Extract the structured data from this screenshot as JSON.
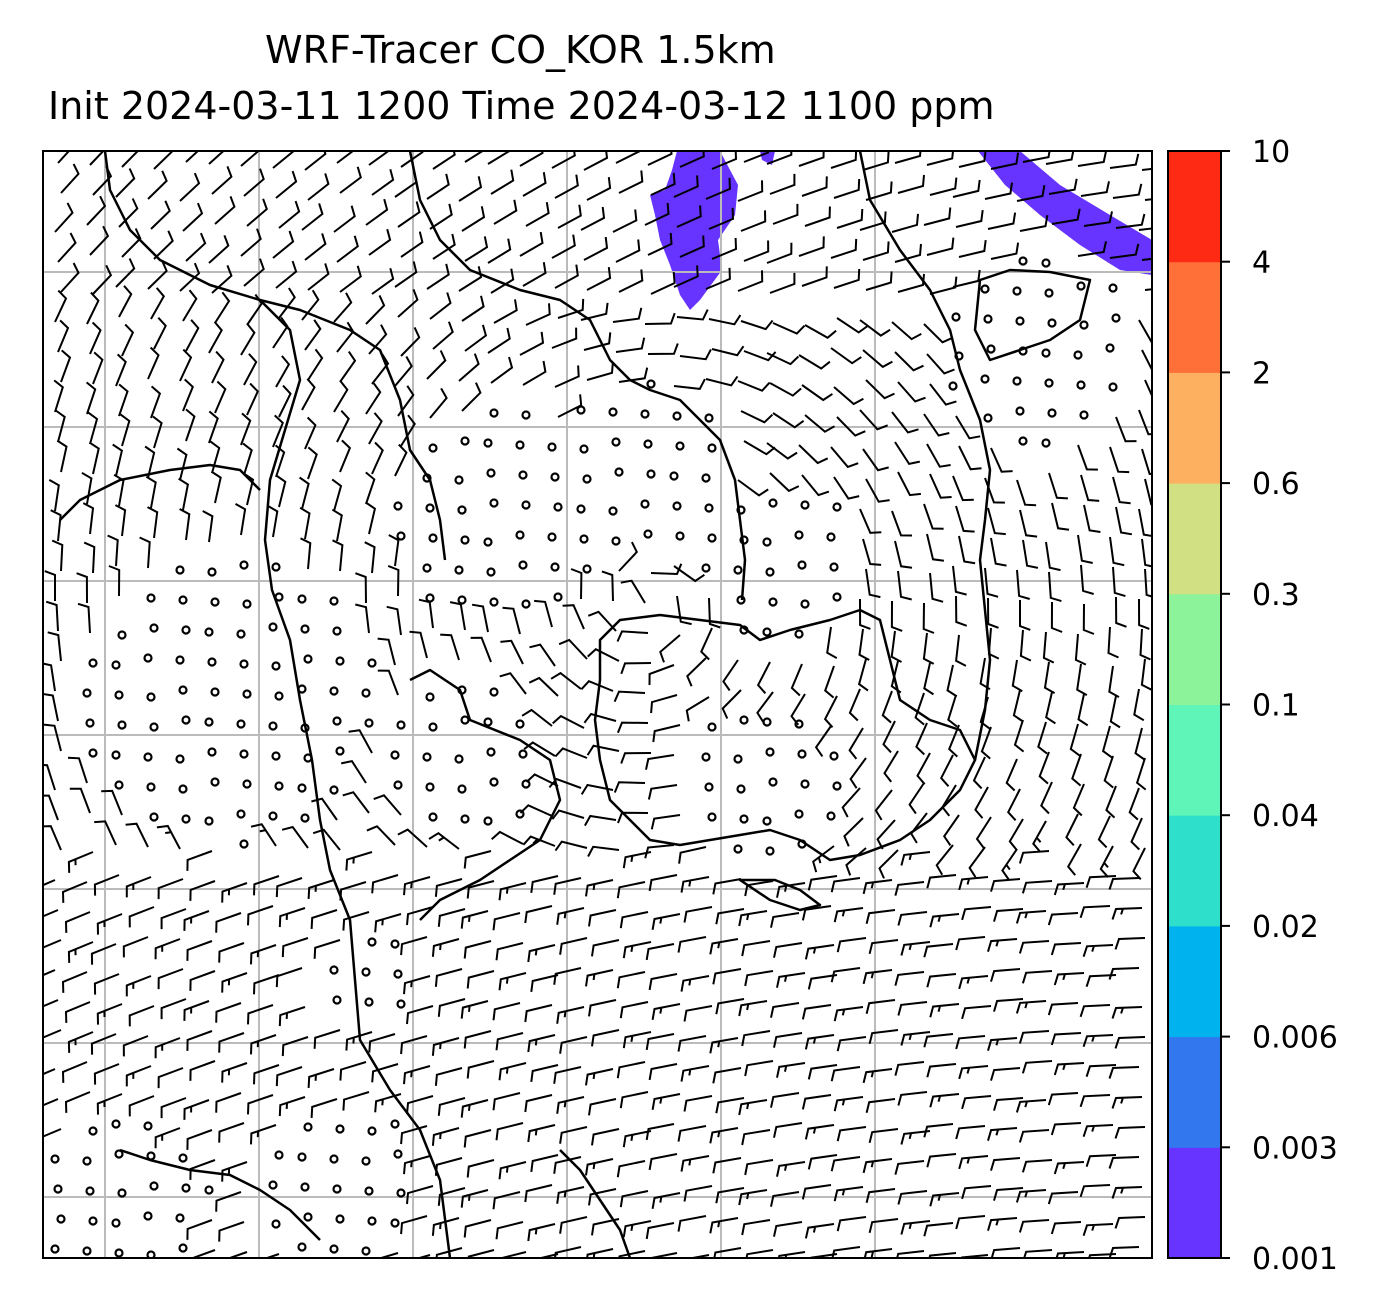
{
  "title": {
    "line1": "WRF-Tracer CO_KOR 1.5km",
    "line2": "Init 2024-03-11 1200 Time 2024-03-12 1100 ppm"
  },
  "colorbar": {
    "levels": [
      "0.001",
      "0.003",
      "0.006",
      "0.02",
      "0.04",
      "0.1",
      "0.3",
      "0.6",
      "2",
      "4",
      "10"
    ],
    "colors": [
      "#6633ff",
      "#3377ee",
      "#00b2ee",
      "#2ee0cc",
      "#5ff5b8",
      "#8cf39a",
      "#d2e084",
      "#fdb060",
      "#fe7038",
      "#ff2a14"
    ]
  },
  "map": {
    "plume_color": "#6633ff",
    "grid_color": "#bbbbbb",
    "coast_color": "#000000"
  }
}
